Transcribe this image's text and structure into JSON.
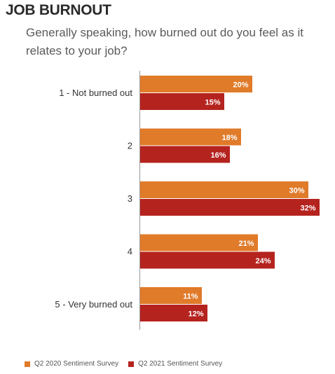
{
  "title": "JOB BURNOUT",
  "subtitle": "Generally speaking, how burned out do you feel as it relates to your job?",
  "colors": {
    "q2_2020": "#e07b2a",
    "q2_2021": "#b5231f",
    "axis": "#999999"
  },
  "chart_data": {
    "type": "bar",
    "orientation": "horizontal",
    "categories": [
      "1 - Not burned out",
      "2",
      "3",
      "4",
      "5 - Very burned out"
    ],
    "series": [
      {
        "name": "Q2 2020 Sentiment Survey",
        "values": [
          20,
          18,
          30,
          21,
          11
        ],
        "labels": [
          "20%",
          "18%",
          "30%",
          "21%",
          "11%"
        ]
      },
      {
        "name": "Q2 2021 Sentiment Survey",
        "values": [
          15,
          16,
          32,
          24,
          12
        ],
        "labels": [
          "15%",
          "16%",
          "32%",
          "24%",
          "12%"
        ]
      }
    ],
    "xlim": [
      0,
      32
    ],
    "grid": false,
    "legend_position": "bottom-left"
  },
  "legend": [
    {
      "label": "Q2 2020 Sentiment Survey"
    },
    {
      "label": "Q2 2021 Sentiment Survey"
    }
  ]
}
